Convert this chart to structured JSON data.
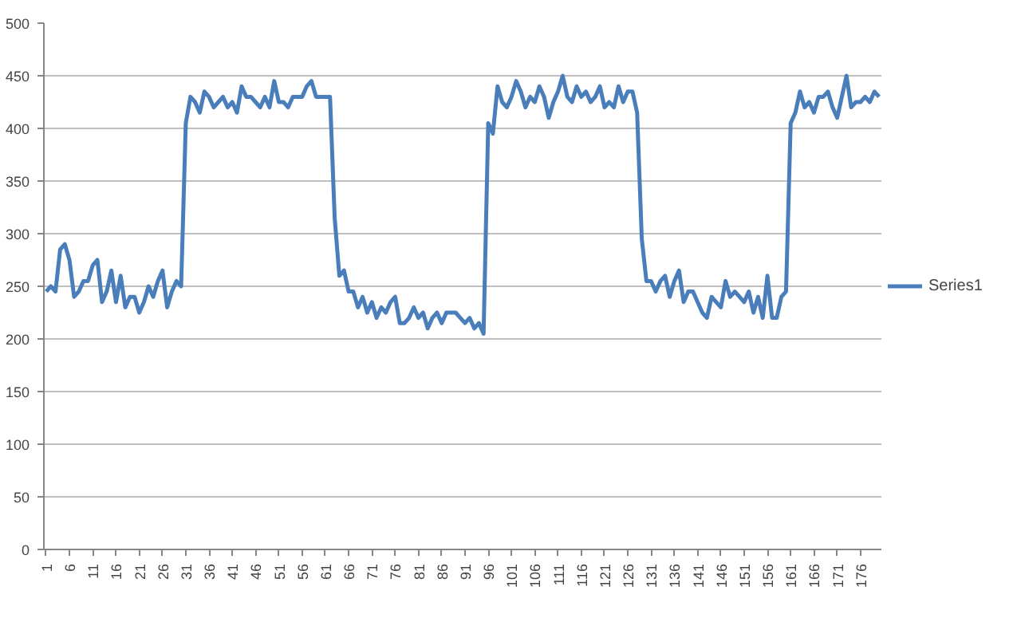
{
  "chart_data": {
    "type": "line",
    "x": [
      1,
      2,
      3,
      4,
      5,
      6,
      7,
      8,
      9,
      10,
      11,
      12,
      13,
      14,
      15,
      16,
      17,
      18,
      19,
      20,
      21,
      22,
      23,
      24,
      25,
      26,
      27,
      28,
      29,
      30,
      31,
      32,
      33,
      34,
      35,
      36,
      37,
      38,
      39,
      40,
      41,
      42,
      43,
      44,
      45,
      46,
      47,
      48,
      49,
      50,
      51,
      52,
      53,
      54,
      55,
      56,
      57,
      58,
      59,
      60,
      61,
      62,
      63,
      64,
      65,
      66,
      67,
      68,
      69,
      70,
      71,
      72,
      73,
      74,
      75,
      76,
      77,
      78,
      79,
      80,
      81,
      82,
      83,
      84,
      85,
      86,
      87,
      88,
      89,
      90,
      91,
      92,
      93,
      94,
      95,
      96,
      97,
      98,
      99,
      100,
      101,
      102,
      103,
      104,
      105,
      106,
      107,
      108,
      109,
      110,
      111,
      112,
      113,
      114,
      115,
      116,
      117,
      118,
      119,
      120,
      121,
      122,
      123,
      124,
      125,
      126,
      127,
      128,
      129,
      130,
      131,
      132,
      133,
      134,
      135,
      136,
      137,
      138,
      139,
      140,
      141,
      142,
      143,
      144,
      145,
      146,
      147,
      148,
      149,
      150,
      151,
      152,
      153,
      154,
      155,
      156,
      157,
      158,
      159,
      160,
      161,
      162,
      163,
      164,
      165,
      166,
      167,
      168,
      169,
      170,
      171,
      172,
      173,
      174,
      175,
      176,
      177,
      178,
      179,
      180
    ],
    "series": [
      {
        "name": "Series1",
        "color": "#4a7ebb",
        "values": [
          245,
          250,
          245,
          285,
          290,
          275,
          240,
          245,
          255,
          255,
          270,
          275,
          235,
          245,
          265,
          235,
          260,
          230,
          240,
          240,
          225,
          235,
          250,
          240,
          255,
          265,
          230,
          245,
          255,
          250,
          405,
          430,
          425,
          415,
          435,
          430,
          420,
          425,
          430,
          420,
          425,
          415,
          440,
          430,
          430,
          425,
          420,
          430,
          420,
          445,
          425,
          425,
          420,
          430,
          430,
          430,
          440,
          445,
          430,
          430,
          430,
          430,
          315,
          260,
          265,
          245,
          245,
          230,
          240,
          225,
          235,
          220,
          230,
          225,
          235,
          240,
          215,
          215,
          220,
          230,
          220,
          225,
          210,
          220,
          225,
          215,
          225,
          225,
          225,
          220,
          215,
          220,
          210,
          215,
          205,
          405,
          395,
          440,
          425,
          420,
          430,
          445,
          435,
          420,
          430,
          425,
          440,
          430,
          410,
          425,
          435,
          450,
          430,
          425,
          440,
          430,
          435,
          425,
          430,
          440,
          420,
          425,
          420,
          440,
          425,
          435,
          435,
          415,
          295,
          255,
          255,
          245,
          255,
          260,
          240,
          255,
          265,
          235,
          245,
          245,
          235,
          225,
          220,
          240,
          235,
          230,
          255,
          240,
          245,
          240,
          235,
          245,
          225,
          240,
          220,
          260,
          220,
          220,
          240,
          245,
          405,
          415,
          435,
          420,
          425,
          415,
          430,
          430,
          435,
          420,
          410,
          430,
          450,
          420,
          425,
          425,
          430,
          425,
          435,
          430
        ]
      }
    ],
    "xlim": [
      0.5,
      180.5
    ],
    "xticks": [
      1,
      6,
      11,
      16,
      21,
      26,
      31,
      36,
      41,
      46,
      51,
      56,
      61,
      66,
      71,
      76,
      81,
      86,
      91,
      96,
      101,
      106,
      111,
      116,
      121,
      126,
      131,
      136,
      141,
      146,
      151,
      156,
      161,
      166,
      171,
      176
    ],
    "ylim": [
      0,
      500
    ],
    "yticks": [
      0,
      50,
      100,
      150,
      200,
      250,
      300,
      350,
      400,
      450,
      500
    ],
    "grid": "y",
    "legend": "right",
    "marker": "none",
    "line_style": "solid"
  }
}
